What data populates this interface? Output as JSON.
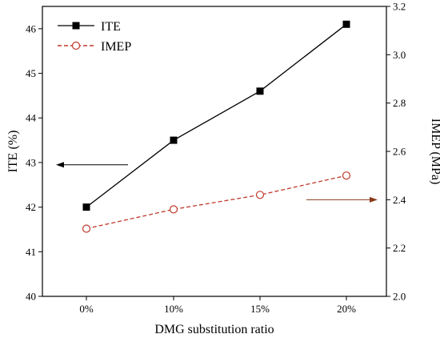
{
  "chart_data": {
    "type": "line",
    "xlabel": "DMG substitution ratio",
    "categories": [
      "0%",
      "10%",
      "15%",
      "20%"
    ],
    "y_left": {
      "label": "ITE (%)",
      "range": [
        40,
        46.5
      ],
      "ticks": [
        "40",
        "41",
        "42",
        "43",
        "44",
        "45",
        "46"
      ]
    },
    "y_right": {
      "label": "IMEP (MPa)",
      "range": [
        2.0,
        3.2
      ],
      "ticks": [
        "2.0",
        "2.2",
        "2.4",
        "2.6",
        "2.8",
        "3.0",
        "3.2"
      ]
    },
    "series": [
      {
        "name": "ITE",
        "axis": "left",
        "values": [
          42.0,
          43.5,
          44.6,
          46.1
        ],
        "color": "#000000",
        "marker": "filled-square",
        "line": "solid"
      },
      {
        "name": "IMEP",
        "axis": "right",
        "values": [
          2.28,
          2.36,
          2.42,
          2.5
        ],
        "color": "#c0392b",
        "marker": "open-circle",
        "line": "dashed"
      }
    ],
    "legend_position": "top-left",
    "annotations": [
      {
        "type": "arrow",
        "direction": "left",
        "meaning": "ITE uses left axis"
      },
      {
        "type": "arrow",
        "direction": "right",
        "meaning": "IMEP uses right axis",
        "color": "#8b3a1a"
      }
    ],
    "grid": false
  }
}
